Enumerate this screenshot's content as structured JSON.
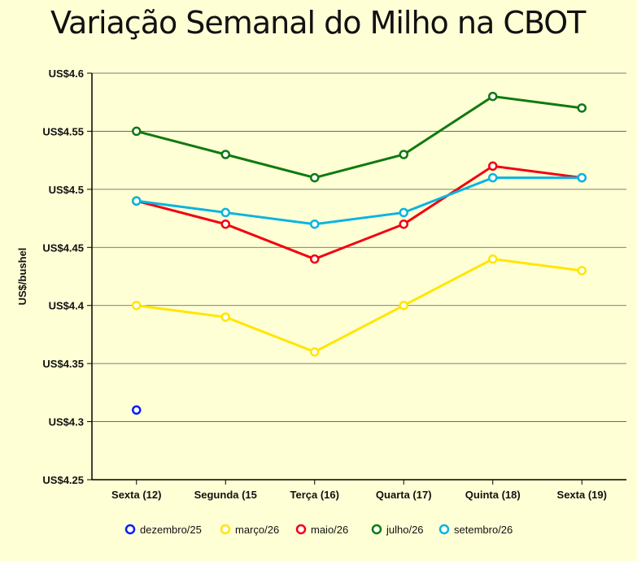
{
  "chart_data": {
    "type": "line",
    "title": "Variação Semanal do Milho na CBOT",
    "xlabel": "",
    "ylabel": "US$/bushel",
    "categories": [
      "Sexta (12)",
      "Segunda (15",
      "Terça (16)",
      "Quarta (17)",
      "Quinta (18)",
      "Sexta (19)"
    ],
    "ylim": [
      4.25,
      4.6
    ],
    "yticks": [
      4.25,
      4.3,
      4.35,
      4.4,
      4.45,
      4.5,
      4.55,
      4.6
    ],
    "ytick_labels": [
      "US$4.25",
      "US$4.3",
      "US$4.35",
      "US$4.4",
      "US$4.45",
      "US$4.5",
      "US$4.55",
      "US$4.6"
    ],
    "grid": true,
    "legend": "bottom",
    "series": [
      {
        "name": "dezembro/25",
        "color": "#0a1ef5",
        "values": [
          4.31,
          null,
          null,
          null,
          null,
          null
        ]
      },
      {
        "name": "março/26",
        "color": "#ffe600",
        "values": [
          4.4,
          4.39,
          4.36,
          4.4,
          4.44,
          4.43
        ]
      },
      {
        "name": "maio/26",
        "color": "#f2000f",
        "values": [
          4.49,
          4.47,
          4.44,
          4.47,
          4.52,
          4.51
        ]
      },
      {
        "name": "julho/26",
        "color": "#107a10",
        "values": [
          4.55,
          4.53,
          4.51,
          4.53,
          4.58,
          4.57
        ]
      },
      {
        "name": "setembro/26",
        "color": "#0ab4e0",
        "values": [
          4.49,
          4.48,
          4.47,
          4.48,
          4.51,
          4.51
        ]
      }
    ]
  }
}
